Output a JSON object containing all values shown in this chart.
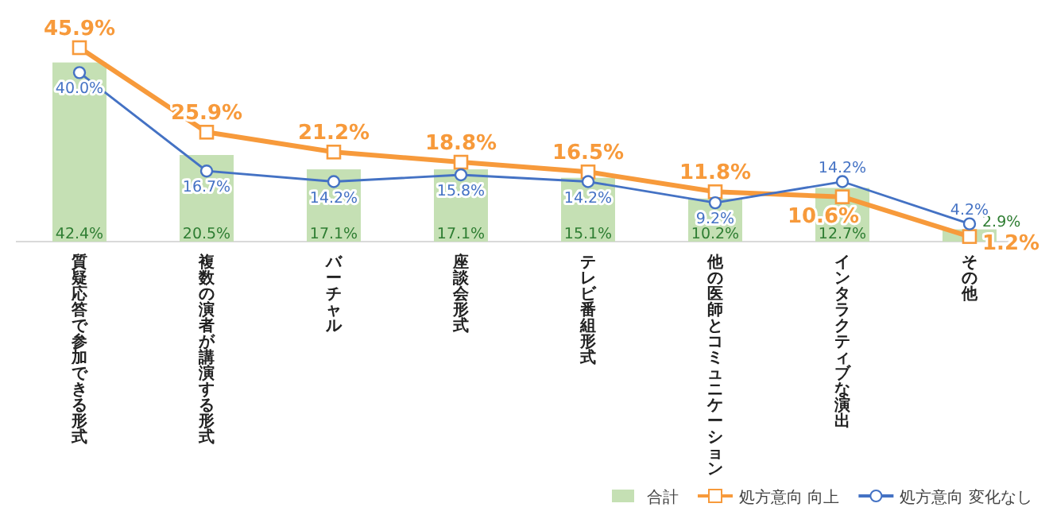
{
  "chart_data": {
    "type": "bar",
    "categories": [
      "質疑応答で参加できる形式",
      "複数の演者が講演する形式",
      "バーチャル",
      "座談会形式",
      "テレビ番組形式",
      "他の医師とコミュニケーション",
      "インタラクティブな演出",
      "その他"
    ],
    "series": [
      {
        "name": "合計",
        "color": "#c5e0b4",
        "values": [
          42.4,
          20.5,
          17.1,
          17.1,
          15.1,
          10.2,
          12.7,
          2.9
        ],
        "value_labels": [
          "42.4%",
          "20.5%",
          "17.1%",
          "17.1%",
          "15.1%",
          "10.2%",
          "12.7%",
          "2.9%"
        ]
      },
      {
        "name": "処方意向 向上",
        "type": "line",
        "color": "#f79a3b",
        "marker": "square",
        "values": [
          45.9,
          25.9,
          21.2,
          18.8,
          16.5,
          11.8,
          10.6,
          1.2
        ],
        "value_labels": [
          "45.9%",
          "25.9%",
          "21.2%",
          "18.8%",
          "16.5%",
          "11.8%",
          "10.6%",
          "1.2%"
        ]
      },
      {
        "name": "処方意向 変化なし",
        "type": "line",
        "color": "#4472c4",
        "marker": "circle",
        "values": [
          40.0,
          16.7,
          14.2,
          15.8,
          14.2,
          9.2,
          14.2,
          4.2
        ],
        "value_labels": [
          "40.0%",
          "16.7%",
          "14.2%",
          "15.8%",
          "14.2%",
          "9.2%",
          "14.2%",
          "4.2%"
        ]
      }
    ],
    "legend": "bottom right"
  }
}
